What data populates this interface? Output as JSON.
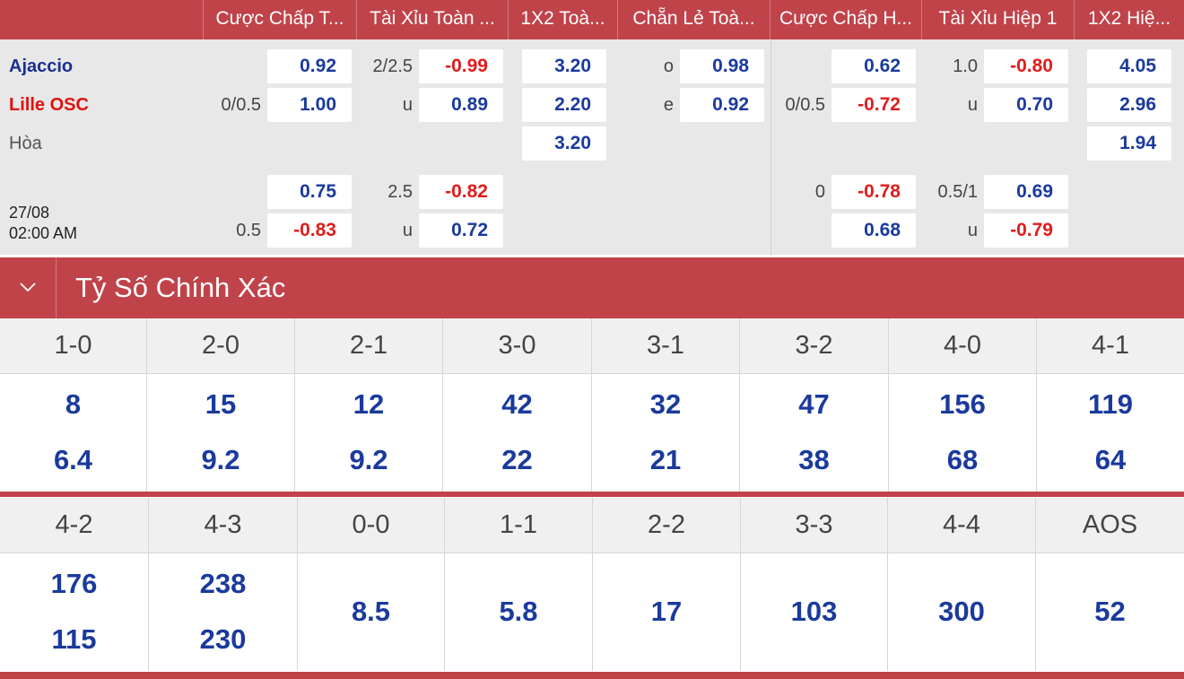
{
  "header": {
    "columns": [
      "Cược Chấp T...",
      "Tài Xỉu Toàn ...",
      "1X2 Toà...",
      "Chẵn Lẻ Toà...",
      "Cược Chấp H...",
      "Tài Xỉu Hiệp 1",
      "1X2 Hiệ..."
    ]
  },
  "match": {
    "home": "Ajaccio",
    "away": "Lille OSC",
    "draw": "Hòa",
    "date": "27/08",
    "time": "02:00 AM"
  },
  "odds": {
    "main": {
      "hdp_line": "0/0.5",
      "hdp_home": "0.92",
      "hdp_away": "1.00",
      "ou_line": "2/2.5",
      "ou_over": "-0.99",
      "ou_under_lbl": "u",
      "ou_under": "0.89",
      "x12_home": "3.20",
      "x12_away": "2.20",
      "x12_draw": "3.20",
      "oe_odd_lbl": "o",
      "oe_odd": "0.98",
      "oe_even_lbl": "e",
      "oe_even": "0.92",
      "h1_hdp_line": "0/0.5",
      "h1_hdp_home": "0.62",
      "h1_hdp_away": "-0.72",
      "h1_ou_line": "1.0",
      "h1_ou_over": "-0.80",
      "h1_ou_under_lbl": "u",
      "h1_ou_under": "0.70",
      "h1_x12_home": "4.05",
      "h1_x12_away": "2.96",
      "h1_x12_draw": "1.94"
    },
    "alt": {
      "hdp_line": "0.5",
      "hdp_home": "0.75",
      "hdp_away": "-0.83",
      "ou_line": "2.5",
      "ou_over": "-0.82",
      "ou_under_lbl": "u",
      "ou_under": "0.72",
      "h1_hdp_line": "0",
      "h1_hdp_home": "-0.78",
      "h1_hdp_away": "0.68",
      "h1_ou_line": "0.5/1",
      "h1_ou_over": "0.69",
      "h1_ou_under_lbl": "u",
      "h1_ou_under": "-0.79"
    }
  },
  "section": {
    "title": "Tỷ Số Chính Xác",
    "toggle_icon": "chevron-down-icon"
  },
  "correct_score": {
    "grid1": {
      "headers": [
        "1-0",
        "2-0",
        "2-1",
        "3-0",
        "3-1",
        "3-2",
        "4-0",
        "4-1"
      ],
      "home": [
        "8",
        "15",
        "12",
        "42",
        "32",
        "47",
        "156",
        "119"
      ],
      "away": [
        "6.4",
        "9.2",
        "9.2",
        "22",
        "21",
        "38",
        "68",
        "64"
      ]
    },
    "grid2": {
      "headers": [
        "4-2",
        "4-3",
        "0-0",
        "1-1",
        "2-2",
        "3-3",
        "4-4",
        "AOS"
      ],
      "home": [
        "176",
        "238"
      ],
      "away": [
        "115",
        "230"
      ],
      "single": [
        "8.5",
        "5.8",
        "17",
        "103",
        "300",
        "52"
      ]
    }
  },
  "colors": {
    "accent": "#c0434a",
    "odds_positive": "#1a3a9c",
    "odds_negative": "#e21c1c"
  }
}
